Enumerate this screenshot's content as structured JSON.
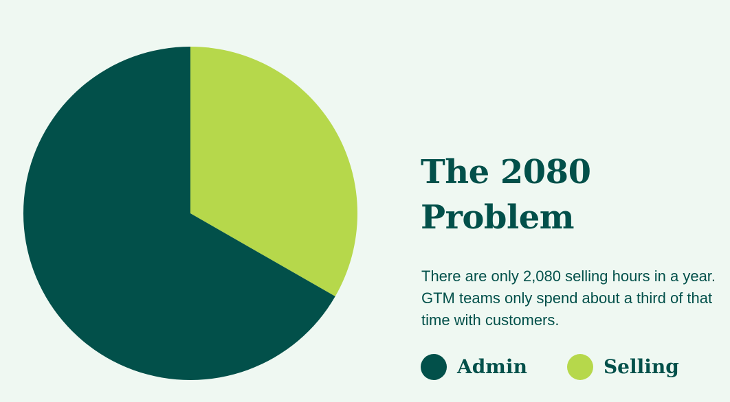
{
  "title": {
    "line1": "The 2080",
    "line2": "Problem"
  },
  "description": "There are only 2,080 selling hours in a year. GTM teams only spend about a third of that time with customers.",
  "colors": {
    "background": "#eff8f2",
    "admin": "#02504a",
    "selling": "#b6d84b",
    "text": "#02504a"
  },
  "chart_data": {
    "type": "pie",
    "title": "The 2080 Problem",
    "categories": [
      "Selling",
      "Admin"
    ],
    "values": [
      33.3,
      66.7
    ],
    "units": "percent of time",
    "start_angle_deg": 0,
    "direction": "clockwise",
    "colors": [
      "#b6d84b",
      "#02504a"
    ],
    "legend": {
      "placement": "bottom",
      "entries": [
        {
          "label": "Admin",
          "color": "#02504a"
        },
        {
          "label": "Selling",
          "color": "#b6d84b"
        }
      ]
    }
  }
}
